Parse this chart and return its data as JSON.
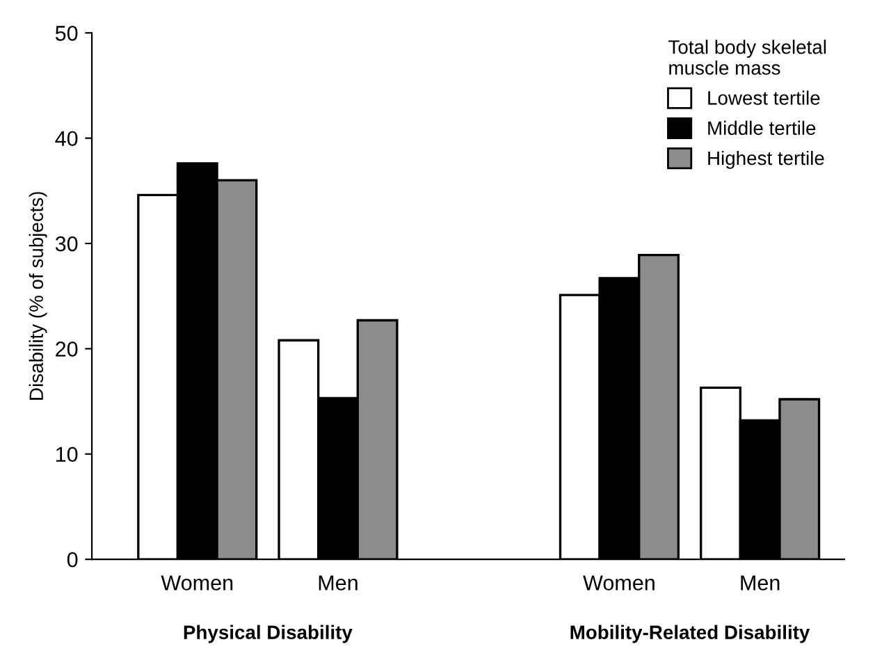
{
  "chart_data": {
    "type": "bar",
    "ylabel": "Disability (% of subjects)",
    "legend_title": "Total body skeletal\nmuscle mass",
    "categories": [
      "Women",
      "Men",
      null,
      "Women",
      "Men"
    ],
    "series": [
      {
        "name": "Lowest tertile",
        "color": "#ffffff",
        "values": [
          34.6,
          20.8,
          null,
          25.1,
          16.3
        ]
      },
      {
        "name": "Middle tertile",
        "color": "#000000",
        "values": [
          37.6,
          15.3,
          null,
          26.7,
          13.2
        ]
      },
      {
        "name": "Highest tertile",
        "color": "#8c8c8c",
        "values": [
          36.0,
          22.7,
          null,
          28.9,
          15.2
        ]
      }
    ],
    "annotations": [
      "Physical Disability",
      "Mobility-Related Disability"
    ],
    "ylim": [
      0,
      50
    ],
    "yticks": [
      0,
      10,
      20,
      30,
      40,
      50
    ],
    "grid": false,
    "legend": "top right"
  }
}
